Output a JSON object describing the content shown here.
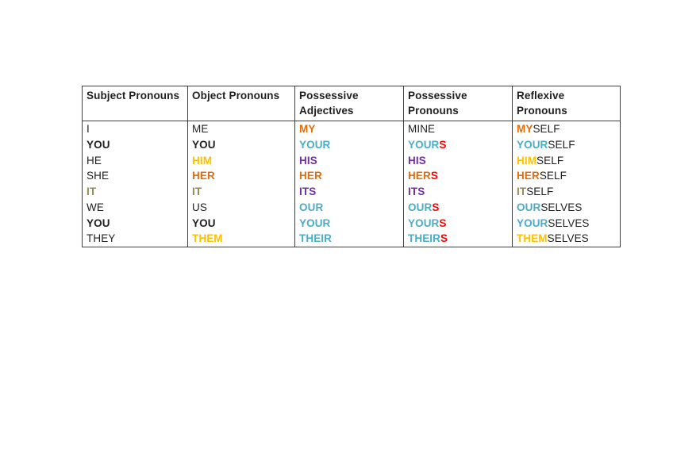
{
  "page": {
    "background": "#ffffff"
  },
  "colors": {
    "black": "#1f1f1f",
    "orange": "#e36c0a",
    "gold": "#ffc000",
    "blue": "#4bacc6",
    "purple": "#7030a0",
    "red": "#ff0000",
    "olive": "#948a54",
    "border": "#3f3f3f"
  },
  "table": {
    "headers": [
      "Subject Pronouns",
      "Object Pronouns",
      "Possessive Adjectives",
      "Possessive Pronouns",
      "Reflexive Pronouns"
    ],
    "rows": [
      [
        [
          {
            "t": "I"
          }
        ],
        [
          {
            "t": "ME"
          }
        ],
        [
          {
            "t": "MY",
            "c": "orange",
            "b": true
          }
        ],
        [
          {
            "t": "MINE"
          }
        ],
        [
          {
            "t": "MY",
            "c": "orange",
            "b": true
          },
          {
            "t": "SELF"
          }
        ]
      ],
      [
        [
          {
            "t": "YOU",
            "b": true
          }
        ],
        [
          {
            "t": "YOU",
            "b": true
          }
        ],
        [
          {
            "t": "YOUR",
            "c": "blue",
            "b": true
          }
        ],
        [
          {
            "t": "YOUR",
            "c": "blue",
            "b": true
          },
          {
            "t": "S",
            "c": "red",
            "b": true
          }
        ],
        [
          {
            "t": "YOUR",
            "c": "blue",
            "b": true
          },
          {
            "t": "SELF"
          }
        ]
      ],
      [
        [
          {
            "t": "HE"
          }
        ],
        [
          {
            "t": "HIM",
            "c": "gold",
            "b": true
          }
        ],
        [
          {
            "t": "HIS",
            "c": "purple",
            "b": true
          }
        ],
        [
          {
            "t": "HIS",
            "c": "purple",
            "b": true
          }
        ],
        [
          {
            "t": "HIM",
            "c": "gold",
            "b": true
          },
          {
            "t": "SELF"
          }
        ]
      ],
      [
        [
          {
            "t": "SHE"
          }
        ],
        [
          {
            "t": "HER",
            "c": "orange",
            "b": true
          }
        ],
        [
          {
            "t": "HER",
            "c": "orange",
            "b": true
          }
        ],
        [
          {
            "t": "HER",
            "c": "orange",
            "b": true
          },
          {
            "t": "S",
            "c": "red",
            "b": true
          }
        ],
        [
          {
            "t": "HER",
            "c": "orange",
            "b": true
          },
          {
            "t": "SELF"
          }
        ]
      ],
      [
        [
          {
            "t": "IT",
            "c": "olive",
            "b": true
          }
        ],
        [
          {
            "t": "IT",
            "c": "olive",
            "b": true
          }
        ],
        [
          {
            "t": "ITS",
            "c": "purple",
            "b": true
          }
        ],
        [
          {
            "t": "ITS",
            "c": "purple",
            "b": true
          }
        ],
        [
          {
            "t": "IT",
            "c": "olive",
            "b": true
          },
          {
            "t": "SELF"
          }
        ]
      ],
      [
        [
          {
            "t": "WE"
          }
        ],
        [
          {
            "t": "US"
          }
        ],
        [
          {
            "t": "OUR",
            "c": "blue",
            "b": true
          }
        ],
        [
          {
            "t": "OUR",
            "c": "blue",
            "b": true
          },
          {
            "t": "S",
            "c": "red",
            "b": true
          }
        ],
        [
          {
            "t": "OUR",
            "c": "blue",
            "b": true
          },
          {
            "t": "SELVES"
          }
        ]
      ],
      [
        [
          {
            "t": "YOU",
            "b": true
          }
        ],
        [
          {
            "t": "YOU",
            "b": true
          }
        ],
        [
          {
            "t": "YOUR",
            "c": "blue",
            "b": true
          }
        ],
        [
          {
            "t": "YOUR",
            "c": "blue",
            "b": true
          },
          {
            "t": "S",
            "c": "red",
            "b": true
          }
        ],
        [
          {
            "t": "YOUR",
            "c": "blue",
            "b": true
          },
          {
            "t": "SELVES"
          }
        ]
      ],
      [
        [
          {
            "t": "THEY"
          }
        ],
        [
          {
            "t": "THEM",
            "c": "gold",
            "b": true
          }
        ],
        [
          {
            "t": "THEIR",
            "c": "blue",
            "b": true
          }
        ],
        [
          {
            "t": "THEIR",
            "c": "blue",
            "b": true
          },
          {
            "t": "S",
            "c": "red",
            "b": true
          }
        ],
        [
          {
            "t": "THEM",
            "c": "gold",
            "b": true
          },
          {
            "t": "SELVES"
          }
        ]
      ]
    ]
  }
}
